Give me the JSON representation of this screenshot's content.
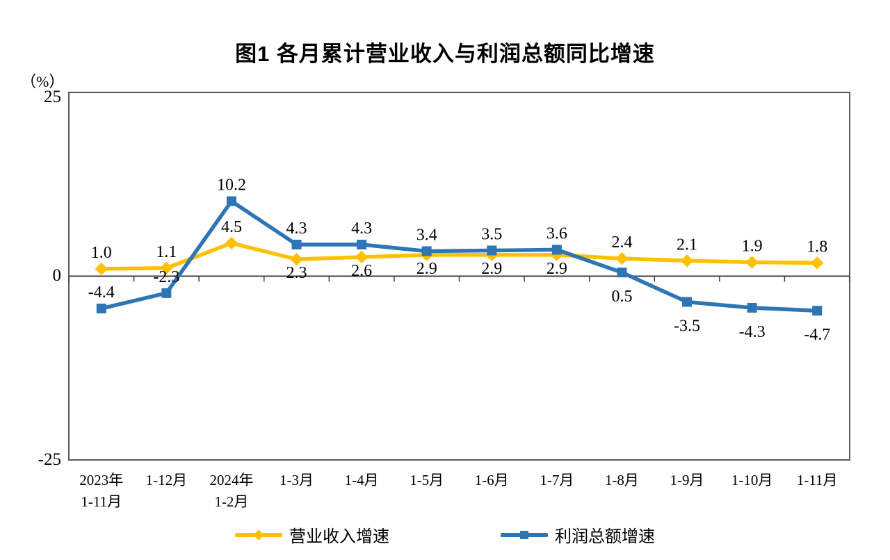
{
  "chart_data": {
    "type": "line",
    "title": "图1  各月累计营业收入与利润总额同比增速",
    "unit_label": "（%）",
    "categories": [
      "2023年\n1-11月",
      "1-12月",
      "2024年\n1-2月",
      "1-3月",
      "1-4月",
      "1-5月",
      "1-6月",
      "1-7月",
      "1-8月",
      "1-9月",
      "1-10月",
      "1-11月"
    ],
    "yticks": [
      "25",
      "0",
      "-25"
    ],
    "ylim": [
      -25,
      25
    ],
    "grid": false,
    "legend_position": "bottom",
    "axis_color": "#595959",
    "zero_line_color": "#404040",
    "series": [
      {
        "name": "营业收入增速",
        "color": "#FFC000",
        "marker": "diamond",
        "values": [
          1.0,
          1.1,
          4.5,
          2.3,
          2.6,
          2.9,
          2.9,
          2.9,
          2.4,
          2.1,
          1.9,
          1.8
        ],
        "label_side": [
          "above",
          "above",
          "above",
          "below",
          "below",
          "below",
          "below",
          "below",
          "above",
          "above",
          "above",
          "above"
        ],
        "label_offset_above": -16,
        "label_offset_below": 27
      },
      {
        "name": "利润总额增速",
        "color": "#2E75B6",
        "marker": "square",
        "values": [
          -4.4,
          -2.3,
          10.2,
          4.3,
          4.3,
          3.4,
          3.5,
          3.6,
          0.5,
          -3.5,
          -4.3,
          -4.7
        ],
        "label_side": [
          "above",
          "above",
          "above",
          "above",
          "above",
          "above",
          "above",
          "above",
          "below",
          "below",
          "below",
          "below"
        ],
        "label_offset_above": -16,
        "label_offset_below": 42
      }
    ]
  }
}
